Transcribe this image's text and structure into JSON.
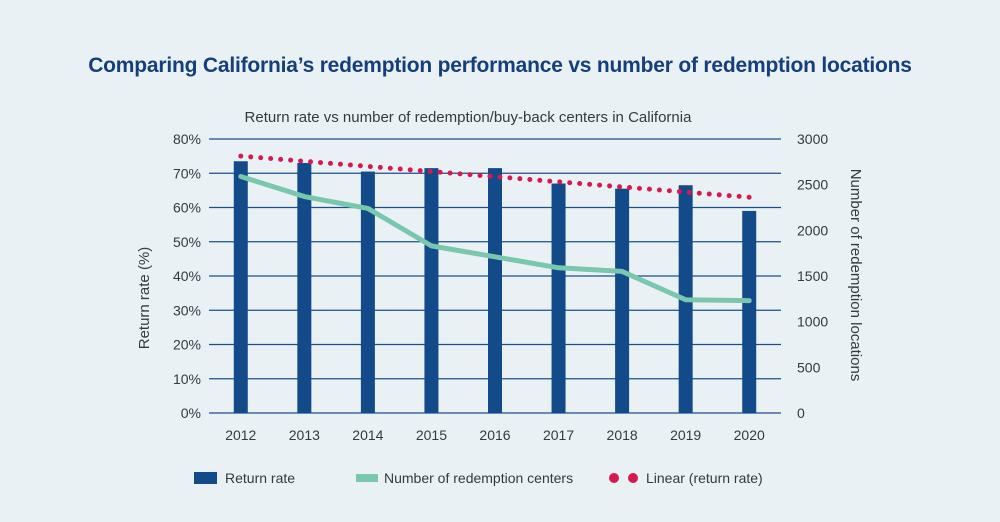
{
  "title": "Comparing California’s redemption performance vs number of redemption locations",
  "chart_data": {
    "type": "bar",
    "subtitle": "Return rate vs number of redemption/buy-back centers in California",
    "categories": [
      "2012",
      "2013",
      "2014",
      "2015",
      "2016",
      "2017",
      "2018",
      "2019",
      "2020"
    ],
    "ylabel_left": "Return rate (%)",
    "ylabel_right": "Number of redemption locations",
    "y_left_ticks": [
      "0%",
      "10%",
      "20%",
      "30%",
      "40%",
      "50%",
      "60%",
      "70%",
      "80%"
    ],
    "y_right_ticks": [
      "0",
      "500",
      "1000",
      "1500",
      "2000",
      "2500",
      "3000"
    ],
    "ylim_left": [
      0,
      80
    ],
    "ylim_right": [
      0,
      3000
    ],
    "grid": true,
    "legend_position": "bottom",
    "series": [
      {
        "name": "Return rate",
        "type": "bar",
        "axis": "left",
        "color": "#134b8a",
        "values": [
          73.5,
          73,
          70.5,
          71.5,
          71.5,
          67,
          65.5,
          66.5,
          59
        ]
      },
      {
        "name": "Number of redemption centers",
        "type": "line",
        "axis": "right",
        "color": "#79c7ad",
        "values": [
          2590,
          2370,
          2240,
          1830,
          1710,
          1590,
          1550,
          1240,
          1230
        ]
      },
      {
        "name": "Linear (return rate)",
        "type": "dotted-line",
        "axis": "left",
        "color": "#d6194f",
        "values": [
          75,
          73.5,
          72,
          70.5,
          69,
          67.5,
          66,
          64.5,
          63
        ]
      }
    ]
  }
}
